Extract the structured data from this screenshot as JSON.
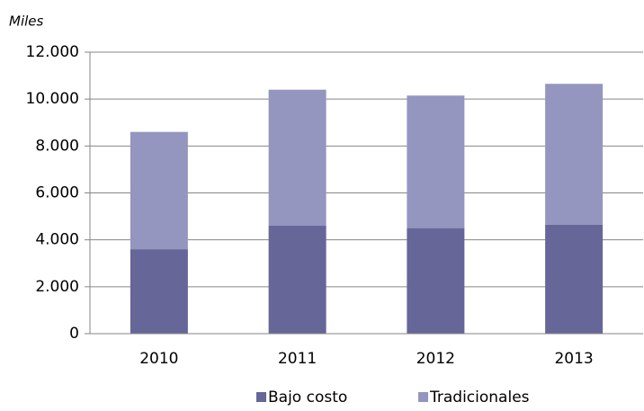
{
  "chart_data": {
    "type": "stacked_bar",
    "y_label": "Miles",
    "categories": [
      "2010",
      "2011",
      "2012",
      "2013"
    ],
    "series": [
      {
        "name": "Bajo costo",
        "color": "#666699",
        "values": [
          3600,
          4600,
          4500,
          4650
        ]
      },
      {
        "name": "Tradicionales",
        "color": "#9496bf",
        "values": [
          5000,
          5800,
          5650,
          6000
        ]
      }
    ],
    "ylim": [
      0,
      12000
    ],
    "yticks": [
      0,
      {
        "value": 2000,
        "label": "2.000"
      },
      {
        "value": 4000,
        "label": "4.000"
      },
      {
        "value": 6000,
        "label": "6.000"
      },
      {
        "value": 8000,
        "label": "8.000"
      },
      {
        "value": 10000,
        "label": "10.000"
      },
      {
        "value": 12000,
        "label": "12.000"
      }
    ],
    "grid": true,
    "legend": "bottom"
  }
}
